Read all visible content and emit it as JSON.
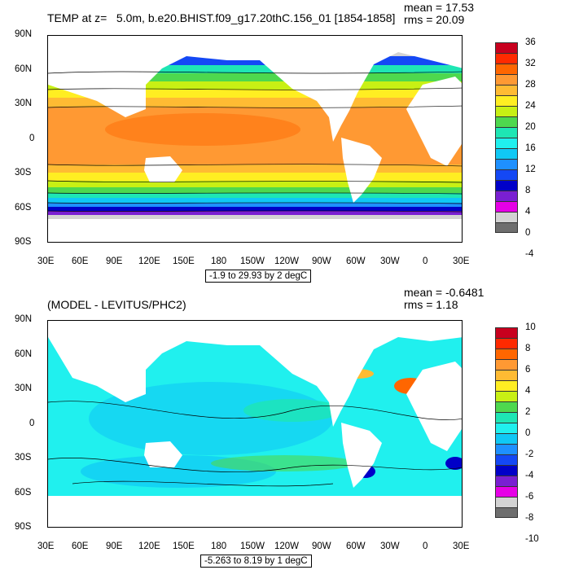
{
  "panel1": {
    "title": "TEMP at z=   5.0m, b.e20.BHIST.f09_g17.20thC.156_01 [1854-1858]",
    "mean": "mean = 17.53",
    "rms": "rms = 20.09",
    "range": "-1.9 to 29.93 by 2 degC",
    "colorbar_labels": [
      "36",
      "32",
      "28",
      "24",
      "20",
      "16",
      "12",
      "8",
      "4",
      "0",
      "-4"
    ]
  },
  "panel2": {
    "title": "(MODEL - LEVITUS/PHC2)",
    "mean": "mean = -0.6481",
    "rms": "rms = 1.18",
    "range": "-5.263 to 8.19 by 1 degC",
    "colorbar_labels": [
      "10",
      "8",
      "6",
      "4",
      "2",
      "0",
      "-2",
      "-4",
      "-6",
      "-8",
      "-10"
    ]
  },
  "lat_labels": [
    "90N",
    "60N",
    "30N",
    "0",
    "30S",
    "60S",
    "90S"
  ],
  "lon_labels": [
    "30E",
    "60E",
    "90E",
    "120E",
    "150E",
    "180",
    "150W",
    "120W",
    "90W",
    "60W",
    "30W",
    "0",
    "30E"
  ],
  "colors": {
    "land_grey": "#d3d3d3",
    "missing": "#6e6e6e",
    "cbar1": [
      "#c8001e",
      "#ff2a00",
      "#ff6600",
      "#ff9933",
      "#ffbb33",
      "#ffee22",
      "#c8f014",
      "#4ed84e",
      "#1ee6b4",
      "#20f0ee",
      "#10c8f5",
      "#1e90ff",
      "#1448f5",
      "#0000c8",
      "#7a1fd2",
      "#e600e6",
      "#d3d3d3",
      "#6e6e6e"
    ],
    "cbar2": [
      "#c8001e",
      "#ff2a00",
      "#ff6600",
      "#ff9933",
      "#ffbb33",
      "#ffee22",
      "#c8f014",
      "#4ed84e",
      "#1ee6b4",
      "#20f0ee",
      "#10c8f5",
      "#1e90ff",
      "#1448f5",
      "#0000c8",
      "#7a1fd2",
      "#e600e6",
      "#d3d3d3",
      "#6e6e6e"
    ]
  }
}
